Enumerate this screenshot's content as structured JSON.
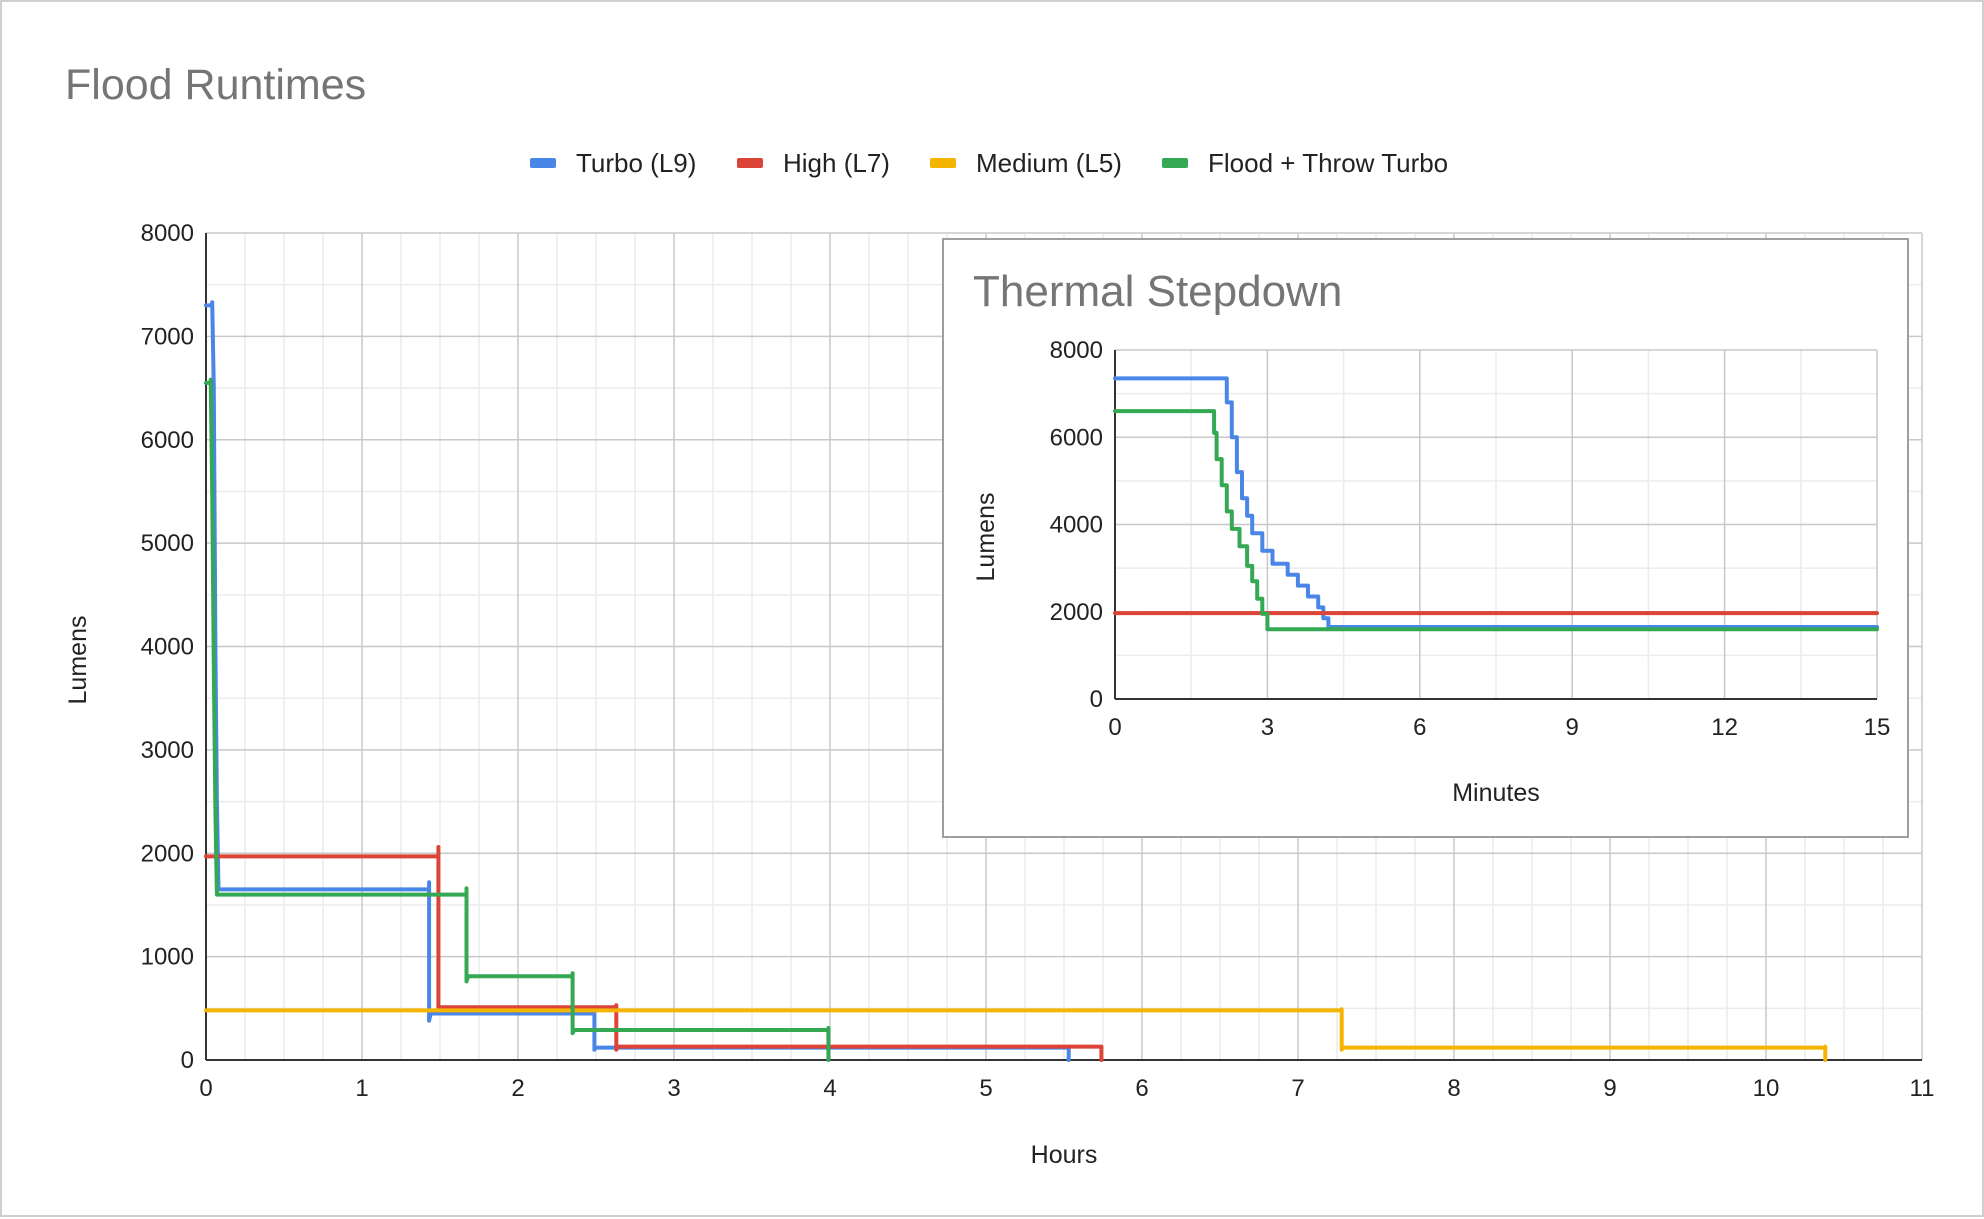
{
  "chart_data": [
    {
      "type": "line",
      "title": "Flood Runtimes",
      "xlabel": "Hours",
      "ylabel": "Lumens",
      "xlim": [
        0,
        11
      ],
      "ylim": [
        0,
        8000
      ],
      "xticks": [
        "0",
        "1",
        "2",
        "3",
        "4",
        "5",
        "6",
        "7",
        "8",
        "9",
        "10",
        "11"
      ],
      "yticks": [
        "0",
        "1000",
        "2000",
        "3000",
        "4000",
        "5000",
        "6000",
        "7000",
        "8000"
      ],
      "grid": true,
      "legend_position": "top",
      "series": [
        {
          "name": "Turbo (L9)",
          "color": "#4a86e8",
          "points": [
            [
              0,
              7300
            ],
            [
              0.04,
              7300
            ],
            [
              0.04,
              7330
            ],
            [
              0.05,
              6500
            ],
            [
              0.06,
              4000
            ],
            [
              0.07,
              2500
            ],
            [
              0.08,
              1650
            ],
            [
              1.43,
              1650
            ],
            [
              1.43,
              1720
            ],
            [
              1.43,
              380
            ],
            [
              1.44,
              450
            ],
            [
              2.49,
              450
            ],
            [
              2.49,
              100
            ],
            [
              2.5,
              120
            ],
            [
              5.53,
              120
            ],
            [
              5.53,
              0
            ]
          ]
        },
        {
          "name": "High (L7)",
          "color": "#db4437",
          "points": [
            [
              0,
              1970
            ],
            [
              1.49,
              1970
            ],
            [
              1.49,
              2060
            ],
            [
              1.49,
              480
            ],
            [
              1.5,
              510
            ],
            [
              2.63,
              510
            ],
            [
              2.63,
              530
            ],
            [
              2.63,
              100
            ],
            [
              2.64,
              130
            ],
            [
              5.74,
              130
            ],
            [
              5.74,
              0
            ]
          ]
        },
        {
          "name": "Medium (L5)",
          "color": "#f4b400",
          "points": [
            [
              0,
              480
            ],
            [
              7.28,
              480
            ],
            [
              7.28,
              490
            ],
            [
              7.28,
              100
            ],
            [
              7.29,
              120
            ],
            [
              10.38,
              120
            ],
            [
              10.38,
              130
            ],
            [
              10.38,
              0
            ]
          ]
        },
        {
          "name": "Flood + Throw Turbo",
          "color": "#34a853",
          "points": [
            [
              0,
              6550
            ],
            [
              0.03,
              6550
            ],
            [
              0.03,
              6580
            ],
            [
              0.04,
              5500
            ],
            [
              0.05,
              3800
            ],
            [
              0.06,
              2400
            ],
            [
              0.07,
              1600
            ],
            [
              1.67,
              1600
            ],
            [
              1.67,
              1660
            ],
            [
              1.67,
              760
            ],
            [
              1.68,
              810
            ],
            [
              2.35,
              810
            ],
            [
              2.35,
              840
            ],
            [
              2.35,
              260
            ],
            [
              2.36,
              290
            ],
            [
              3.99,
              290
            ],
            [
              3.99,
              310
            ],
            [
              3.99,
              0
            ]
          ]
        }
      ]
    },
    {
      "type": "line",
      "title": "Thermal Stepdown",
      "xlabel": "Minutes",
      "ylabel": "Lumens",
      "xlim": [
        0,
        15
      ],
      "ylim": [
        0,
        8000
      ],
      "xticks": [
        "0",
        "3",
        "6",
        "9",
        "12",
        "15"
      ],
      "yticks": [
        "0",
        "2000",
        "4000",
        "6000",
        "8000"
      ],
      "grid": true,
      "series": [
        {
          "name": "Turbo (L9)",
          "color": "#4a86e8",
          "points": [
            [
              0,
              7350
            ],
            [
              2.2,
              7350
            ],
            [
              2.2,
              6800
            ],
            [
              2.3,
              6800
            ],
            [
              2.3,
              6000
            ],
            [
              2.4,
              6000
            ],
            [
              2.4,
              5200
            ],
            [
              2.5,
              5200
            ],
            [
              2.5,
              4600
            ],
            [
              2.6,
              4600
            ],
            [
              2.6,
              4200
            ],
            [
              2.7,
              4200
            ],
            [
              2.7,
              3800
            ],
            [
              2.9,
              3800
            ],
            [
              2.9,
              3400
            ],
            [
              3.1,
              3400
            ],
            [
              3.1,
              3100
            ],
            [
              3.4,
              3100
            ],
            [
              3.4,
              2850
            ],
            [
              3.6,
              2850
            ],
            [
              3.6,
              2600
            ],
            [
              3.8,
              2600
            ],
            [
              3.8,
              2350
            ],
            [
              4.0,
              2350
            ],
            [
              4.0,
              2100
            ],
            [
              4.1,
              2100
            ],
            [
              4.1,
              1850
            ],
            [
              4.2,
              1850
            ],
            [
              4.2,
              1650
            ],
            [
              15,
              1650
            ]
          ]
        },
        {
          "name": "High (L7)",
          "color": "#db4437",
          "points": [
            [
              0,
              1970
            ],
            [
              15,
              1970
            ]
          ]
        },
        {
          "name": "Flood + Throw Turbo",
          "color": "#34a853",
          "points": [
            [
              0,
              6600
            ],
            [
              1.95,
              6600
            ],
            [
              1.95,
              6100
            ],
            [
              2.0,
              6100
            ],
            [
              2.0,
              5500
            ],
            [
              2.1,
              5500
            ],
            [
              2.1,
              4900
            ],
            [
              2.2,
              4900
            ],
            [
              2.2,
              4300
            ],
            [
              2.3,
              4300
            ],
            [
              2.3,
              3900
            ],
            [
              2.45,
              3900
            ],
            [
              2.45,
              3500
            ],
            [
              2.6,
              3500
            ],
            [
              2.6,
              3050
            ],
            [
              2.7,
              3050
            ],
            [
              2.7,
              2700
            ],
            [
              2.8,
              2700
            ],
            [
              2.8,
              2300
            ],
            [
              2.9,
              2300
            ],
            [
              2.9,
              1950
            ],
            [
              3.0,
              1950
            ],
            [
              3.0,
              1600
            ],
            [
              15,
              1600
            ]
          ]
        }
      ]
    }
  ]
}
